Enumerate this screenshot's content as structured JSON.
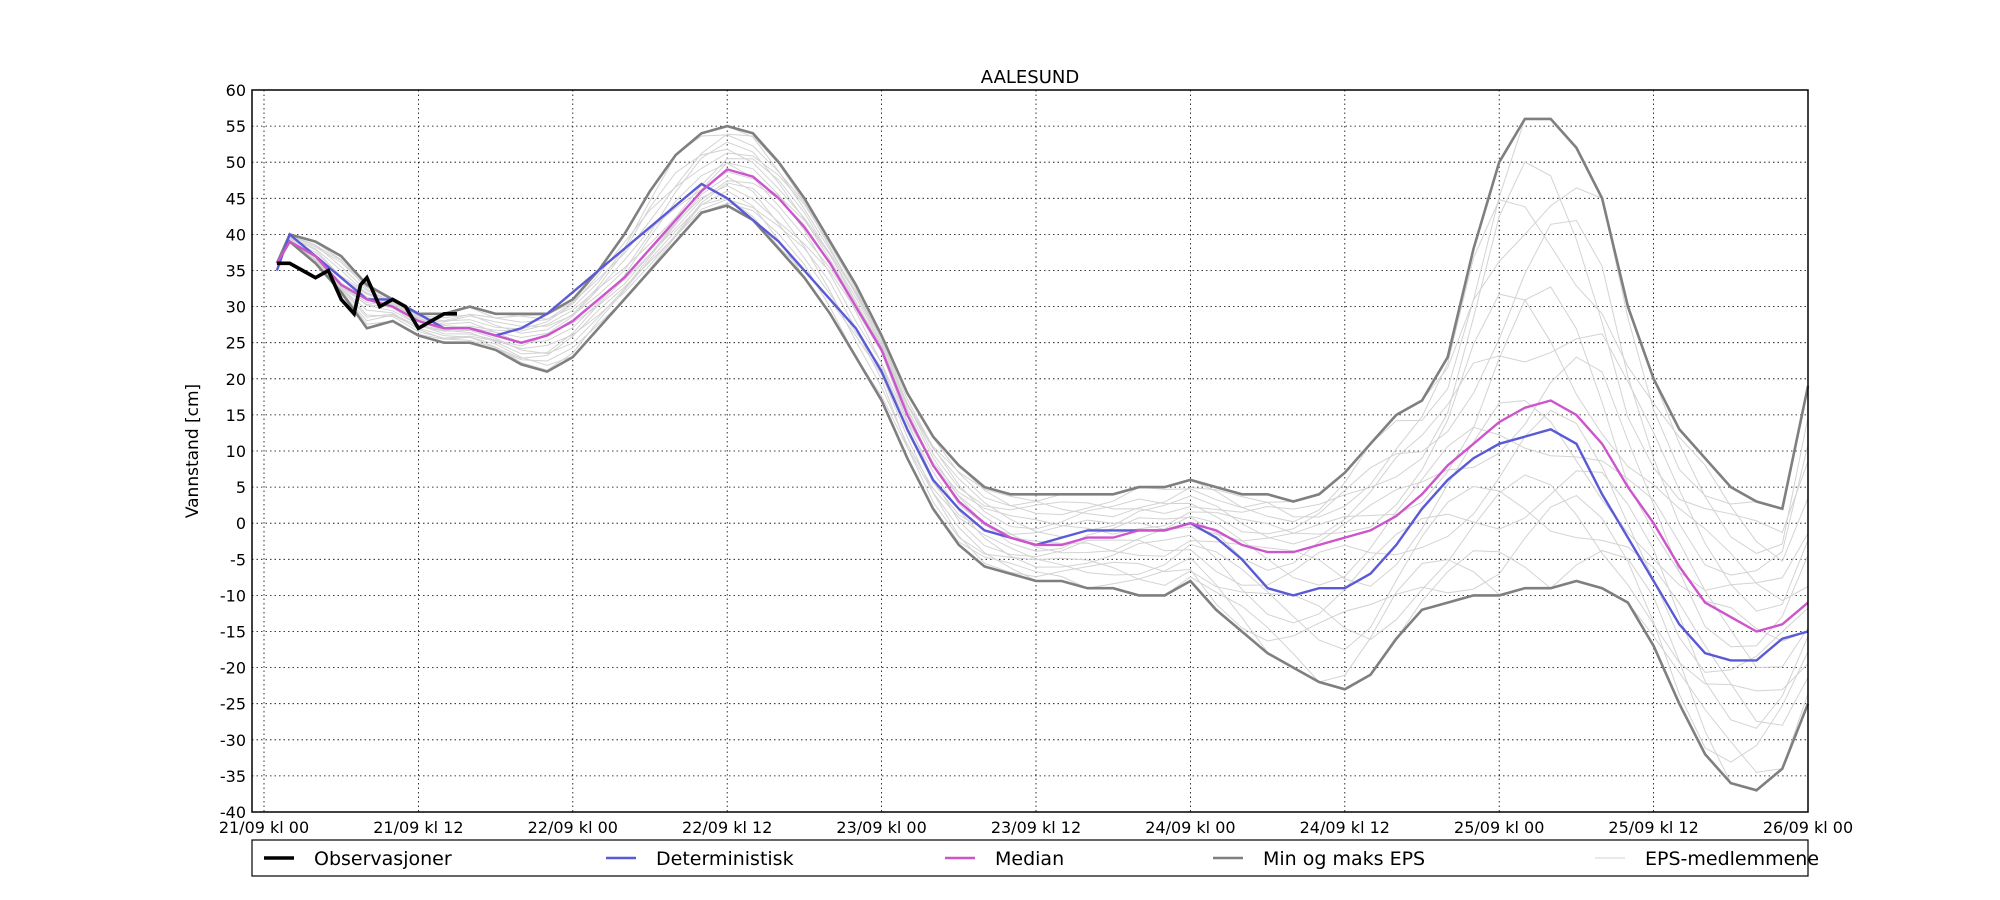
{
  "chart_data": {
    "type": "line",
    "title": "AALESUND",
    "xlabel": "",
    "ylabel": "Vannstand [cm]",
    "x_unit": "hours since 21/09 kl 00",
    "xlim": [
      0,
      120
    ],
    "ylim": [
      -40,
      60
    ],
    "grid": true,
    "x_ticks": [
      {
        "value": 0,
        "label": "21/09 kl 00"
      },
      {
        "value": 12,
        "label": "21/09 kl 12"
      },
      {
        "value": 24,
        "label": "22/09 kl 00"
      },
      {
        "value": 36,
        "label": "22/09 kl 12"
      },
      {
        "value": 48,
        "label": "23/09 kl 00"
      },
      {
        "value": 60,
        "label": "23/09 kl 12"
      },
      {
        "value": 72,
        "label": "24/09 kl 00"
      },
      {
        "value": 84,
        "label": "24/09 kl 12"
      },
      {
        "value": 96,
        "label": "25/09 kl 00"
      },
      {
        "value": 108,
        "label": "25/09 kl 12"
      },
      {
        "value": 120,
        "label": "26/09 kl 00"
      }
    ],
    "y_ticks": [
      60,
      55,
      50,
      45,
      40,
      35,
      30,
      25,
      20,
      15,
      10,
      5,
      0,
      -5,
      -10,
      -15,
      -20,
      -25,
      -30,
      -35,
      -40
    ],
    "legend_position": "bottom",
    "series": [
      {
        "name": "Observasjoner",
        "color": "#000000",
        "x": [
          1,
          2,
          3,
          4,
          5,
          6,
          7,
          7.5,
          8,
          9,
          10,
          11,
          12,
          13,
          14,
          15
        ],
        "y": [
          36,
          36,
          35,
          34,
          35,
          31,
          29,
          33,
          34,
          30,
          31,
          30,
          27,
          28,
          29,
          29
        ]
      },
      {
        "name": "Deterministisk",
        "color": "#5a5ad6",
        "x": [
          1,
          2,
          4,
          6,
          8,
          10,
          12,
          14,
          16,
          18,
          20,
          22,
          24,
          26,
          28,
          30,
          32,
          34,
          36,
          38,
          40,
          42,
          44,
          46,
          48,
          50,
          52,
          54,
          56,
          58,
          60,
          62,
          64,
          66,
          68,
          70,
          72,
          74,
          76,
          78,
          80,
          82,
          84,
          86,
          88,
          90,
          92,
          94,
          96,
          98,
          100,
          102,
          104,
          106,
          108,
          110,
          112,
          114,
          116,
          118,
          120
        ],
        "y": [
          35,
          40,
          37,
          34,
          31,
          31,
          29,
          27,
          27,
          26,
          27,
          29,
          32,
          35,
          38,
          41,
          44,
          47,
          45,
          42,
          39,
          35,
          31,
          27,
          21,
          13,
          6,
          2,
          -1,
          -2,
          -3,
          -2,
          -1,
          -1,
          -1,
          -1,
          0,
          -2,
          -5,
          -9,
          -10,
          -9,
          -9,
          -7,
          -3,
          2,
          6,
          9,
          11,
          12,
          13,
          11,
          4,
          -2,
          -8,
          -14,
          -18,
          -19,
          -19,
          -16,
          -15
        ]
      },
      {
        "name": "Median",
        "color": "#cc55cc",
        "x": [
          1,
          2,
          4,
          6,
          8,
          10,
          12,
          14,
          16,
          18,
          20,
          22,
          24,
          26,
          28,
          30,
          32,
          34,
          36,
          38,
          40,
          42,
          44,
          46,
          48,
          50,
          52,
          54,
          56,
          58,
          60,
          62,
          64,
          66,
          68,
          70,
          72,
          74,
          76,
          78,
          80,
          82,
          84,
          86,
          88,
          90,
          92,
          94,
          96,
          98,
          100,
          102,
          104,
          106,
          108,
          110,
          112,
          114,
          116,
          118,
          120
        ],
        "y": [
          36,
          39,
          37,
          33,
          31,
          30,
          28,
          27,
          27,
          26,
          25,
          26,
          28,
          31,
          34,
          38,
          42,
          46,
          49,
          48,
          45,
          41,
          36,
          30,
          24,
          15,
          8,
          3,
          0,
          -2,
          -3,
          -3,
          -2,
          -2,
          -1,
          -1,
          0,
          -1,
          -3,
          -4,
          -4,
          -3,
          -2,
          -1,
          1,
          4,
          8,
          11,
          14,
          16,
          17,
          15,
          11,
          5,
          0,
          -6,
          -11,
          -13,
          -15,
          -14,
          -11
        ]
      },
      {
        "name": "Min og maks EPS",
        "color": "#7f7f7f",
        "min": {
          "x": [
            1,
            2,
            4,
            6,
            8,
            10,
            12,
            14,
            16,
            18,
            20,
            22,
            24,
            26,
            28,
            30,
            32,
            34,
            36,
            38,
            40,
            42,
            44,
            46,
            48,
            50,
            52,
            54,
            56,
            58,
            60,
            62,
            64,
            66,
            68,
            70,
            72,
            74,
            76,
            78,
            80,
            82,
            84,
            86,
            88,
            90,
            92,
            94,
            96,
            98,
            100,
            102,
            104,
            106,
            108,
            110,
            112,
            114,
            116,
            118,
            120
          ],
          "y": [
            36,
            39,
            36,
            32,
            27,
            28,
            26,
            25,
            25,
            24,
            22,
            21,
            23,
            27,
            31,
            35,
            39,
            43,
            44,
            42,
            38,
            34,
            29,
            23,
            17,
            9,
            2,
            -3,
            -6,
            -7,
            -8,
            -8,
            -9,
            -9,
            -10,
            -10,
            -8,
            -12,
            -15,
            -18,
            -20,
            -22,
            -23,
            -21,
            -16,
            -12,
            -11,
            -10,
            -10,
            -9,
            -9,
            -8,
            -9,
            -11,
            -17,
            -25,
            -32,
            -36,
            -37,
            -34,
            -25
          ]
        },
        "max": {
          "x": [
            1,
            2,
            4,
            6,
            8,
            10,
            12,
            14,
            16,
            18,
            20,
            22,
            24,
            26,
            28,
            30,
            32,
            34,
            36,
            38,
            40,
            42,
            44,
            46,
            48,
            50,
            52,
            54,
            56,
            58,
            60,
            62,
            64,
            66,
            68,
            70,
            72,
            74,
            76,
            78,
            80,
            82,
            84,
            86,
            88,
            90,
            92,
            94,
            96,
            98,
            100,
            102,
            104,
            106,
            108,
            110,
            112,
            114,
            116,
            118,
            120
          ],
          "y": [
            36,
            40,
            39,
            37,
            33,
            31,
            29,
            29,
            30,
            29,
            29,
            29,
            31,
            35,
            40,
            46,
            51,
            54,
            55,
            54,
            50,
            45,
            39,
            33,
            26,
            18,
            12,
            8,
            5,
            4,
            4,
            4,
            4,
            4,
            5,
            5,
            6,
            5,
            4,
            4,
            3,
            4,
            7,
            11,
            15,
            17,
            23,
            38,
            50,
            56,
            56,
            52,
            45,
            30,
            20,
            13,
            9,
            5,
            3,
            2,
            19
          ]
        }
      },
      {
        "name": "EPS-medlemmene",
        "color": "#d3d3d3"
      }
    ]
  }
}
